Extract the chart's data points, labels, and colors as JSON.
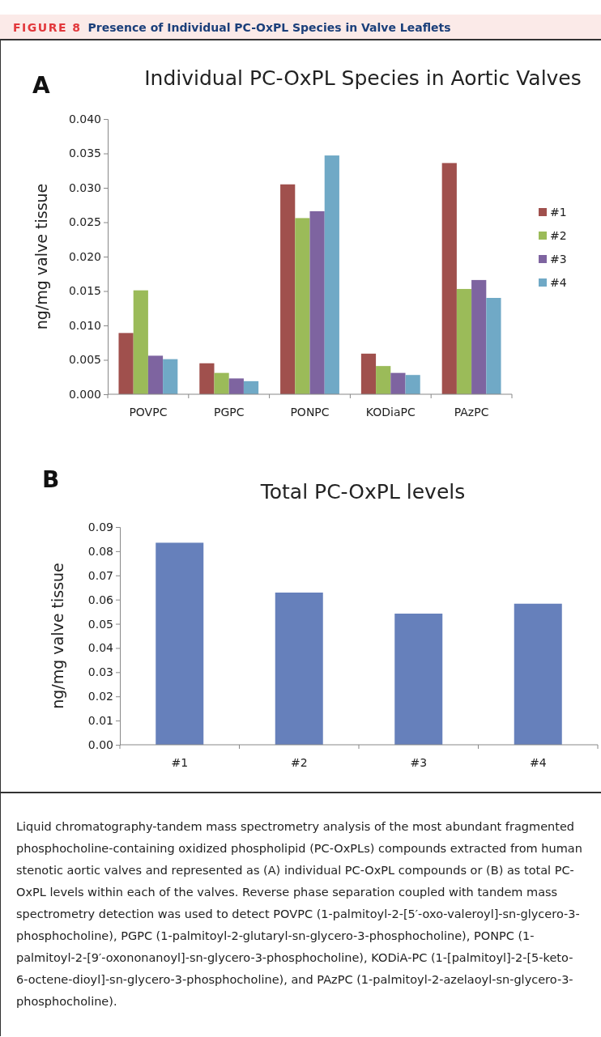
{
  "chart_data": [
    {
      "type": "bar",
      "title": "Individual PC-OxPL Species in Aortic Valves",
      "ylabel": "ng/mg valve tissue",
      "annotations": [
        "FIGURE 8",
        "Presence of Individual PC-OxPL Species in Valve Leaflets",
        "A"
      ],
      "categories": [
        "POVPC",
        "PGPC",
        "PONPC",
        "KODiaPC",
        "PAzPC"
      ],
      "series": [
        {
          "name": "#1",
          "color": "#a0504d",
          "values": [
            0.0089,
            0.0045,
            0.0305,
            0.0059,
            0.0336
          ]
        },
        {
          "name": "#2",
          "color": "#9bbb59",
          "values": [
            0.0151,
            0.0031,
            0.0256,
            0.0041,
            0.0153
          ]
        },
        {
          "name": "#3",
          "color": "#7e64a0",
          "values": [
            0.0056,
            0.0023,
            0.0266,
            0.0031,
            0.0166
          ]
        },
        {
          "name": "#4",
          "color": "#70a9c6",
          "values": [
            0.0051,
            0.0019,
            0.0347,
            0.0028,
            0.014
          ]
        }
      ],
      "ylim": [
        0,
        0.04
      ],
      "yticks": [
        {
          "value": 0,
          "label": "0.000"
        },
        {
          "value": 0.005,
          "label": "0.005"
        },
        {
          "value": 0.01,
          "label": "0.010"
        },
        {
          "value": 0.015,
          "label": "0.015"
        },
        {
          "value": 0.02,
          "label": "0.020"
        },
        {
          "value": 0.025,
          "label": "0.025"
        },
        {
          "value": 0.03,
          "label": "0.030"
        },
        {
          "value": 0.035,
          "label": "0.035"
        },
        {
          "value": 0.04,
          "label": "0.040"
        }
      ],
      "legend": "right"
    },
    {
      "type": "bar",
      "title": "Total PC-OxPL levels",
      "ylabel": "ng/mg valve tissue",
      "annotations": [
        "B",
        "Liquid chromatography-tandem mass spectrometry analysis of the most abundant fragmented phosphocholine-containing oxidized phospholipid (PC-OxPLs) compounds extracted from human stenotic aortic valves and represented as (A) individual PC-OxPL compounds or (B) as total PC-OxPL levels within each of the valves. Reverse phase separation coupled with tandem mass spectrometry detection was used to detect POVPC (1-palmitoyl-2-[5′-oxo-valeroyl]-sn-glycero-3-phosphocholine), PGPC (1-palmitoyl-2-glutaryl-sn-glycero-3-phosphocholine), PONPC (1-palmitoyl-2-[9′-oxononanoyl]-sn-glycero-3-phosphocholine), KODiA-PC (1-[palmitoyl]-2-[5-keto-6-octene-dioyl]-sn-glycero-3-phosphocholine), and PAzPC (1-palmitoyl-2-azelaoyl-sn-glycero-3-phosphocholine)."
      ],
      "categories": [
        "#1",
        "#2",
        "#3",
        "#4"
      ],
      "values": [
        0.0835,
        0.0629,
        0.0542,
        0.0583
      ],
      "color": "#6680bb",
      "ylim": [
        0,
        0.09
      ],
      "yticks": [
        {
          "value": 0,
          "label": "0.00"
        },
        {
          "value": 0.01,
          "label": "0.01"
        },
        {
          "value": 0.02,
          "label": "0.02"
        },
        {
          "value": 0.03,
          "label": "0.03"
        },
        {
          "value": 0.04,
          "label": "0.04"
        },
        {
          "value": 0.05,
          "label": "0.05"
        },
        {
          "value": 0.06,
          "label": "0.06"
        },
        {
          "value": 0.07,
          "label": "0.07"
        },
        {
          "value": 0.08,
          "label": "0.08"
        },
        {
          "value": 0.09,
          "label": "0.09"
        }
      ]
    }
  ]
}
